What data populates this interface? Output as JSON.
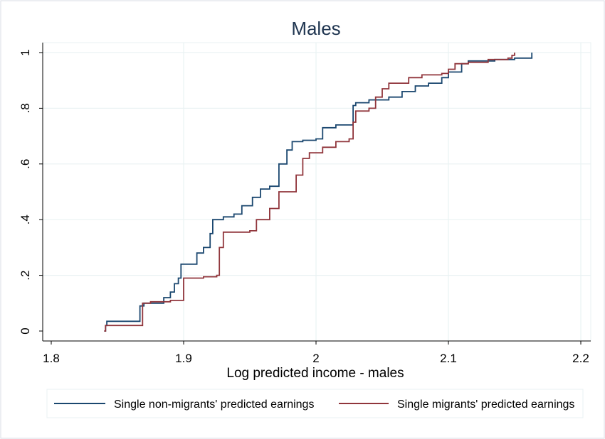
{
  "chart_data": {
    "type": "line",
    "title": "Males",
    "xlabel": "Log predicted income - males",
    "ylabel": "",
    "xlim": [
      1.8,
      2.2
    ],
    "ylim": [
      0,
      1
    ],
    "xticks": [
      "1.8",
      "1.9",
      "2",
      "2.1",
      "2.2"
    ],
    "yticks": [
      "0",
      ".2",
      ".4",
      ".6",
      ".8",
      "1"
    ],
    "grid": true,
    "legend_position": "bottom",
    "series": [
      {
        "name": "Single non-migrants' predicted earnings",
        "color": "#1a476f",
        "step": true,
        "points": [
          [
            1.84,
            0.0
          ],
          [
            1.841,
            0.02
          ],
          [
            1.842,
            0.035
          ],
          [
            1.867,
            0.09
          ],
          [
            1.87,
            0.1
          ],
          [
            1.885,
            0.12
          ],
          [
            1.89,
            0.14
          ],
          [
            1.893,
            0.17
          ],
          [
            1.896,
            0.19
          ],
          [
            1.898,
            0.24
          ],
          [
            1.905,
            0.24
          ],
          [
            1.91,
            0.28
          ],
          [
            1.915,
            0.3
          ],
          [
            1.92,
            0.35
          ],
          [
            1.922,
            0.4
          ],
          [
            1.93,
            0.41
          ],
          [
            1.938,
            0.42
          ],
          [
            1.944,
            0.45
          ],
          [
            1.952,
            0.48
          ],
          [
            1.958,
            0.51
          ],
          [
            1.965,
            0.52
          ],
          [
            1.972,
            0.6
          ],
          [
            1.978,
            0.65
          ],
          [
            1.982,
            0.68
          ],
          [
            1.99,
            0.685
          ],
          [
            2.0,
            0.69
          ],
          [
            2.005,
            0.73
          ],
          [
            2.015,
            0.74
          ],
          [
            2.025,
            0.74
          ],
          [
            2.028,
            0.81
          ],
          [
            2.03,
            0.82
          ],
          [
            2.04,
            0.83
          ],
          [
            2.055,
            0.84
          ],
          [
            2.065,
            0.86
          ],
          [
            2.075,
            0.88
          ],
          [
            2.085,
            0.89
          ],
          [
            2.095,
            0.91
          ],
          [
            2.1,
            0.93
          ],
          [
            2.11,
            0.96
          ],
          [
            2.115,
            0.97
          ],
          [
            2.135,
            0.975
          ],
          [
            2.15,
            0.98
          ],
          [
            2.16,
            0.98
          ],
          [
            2.163,
            1.0
          ]
        ]
      },
      {
        "name": "Single migrants' predicted earnings",
        "color": "#90353b",
        "step": true,
        "points": [
          [
            1.84,
            0.0
          ],
          [
            1.841,
            0.02
          ],
          [
            1.867,
            0.02
          ],
          [
            1.869,
            0.1
          ],
          [
            1.875,
            0.105
          ],
          [
            1.89,
            0.11
          ],
          [
            1.9,
            0.19
          ],
          [
            1.915,
            0.195
          ],
          [
            1.925,
            0.2
          ],
          [
            1.927,
            0.3
          ],
          [
            1.93,
            0.355
          ],
          [
            1.95,
            0.36
          ],
          [
            1.955,
            0.4
          ],
          [
            1.965,
            0.44
          ],
          [
            1.972,
            0.5
          ],
          [
            1.982,
            0.5
          ],
          [
            1.985,
            0.56
          ],
          [
            1.99,
            0.62
          ],
          [
            1.995,
            0.64
          ],
          [
            2.005,
            0.66
          ],
          [
            2.015,
            0.68
          ],
          [
            2.025,
            0.69
          ],
          [
            2.028,
            0.75
          ],
          [
            2.03,
            0.79
          ],
          [
            2.04,
            0.8
          ],
          [
            2.045,
            0.84
          ],
          [
            2.05,
            0.87
          ],
          [
            2.055,
            0.89
          ],
          [
            2.07,
            0.91
          ],
          [
            2.08,
            0.92
          ],
          [
            2.095,
            0.925
          ],
          [
            2.1,
            0.94
          ],
          [
            2.105,
            0.96
          ],
          [
            2.115,
            0.965
          ],
          [
            2.13,
            0.975
          ],
          [
            2.145,
            0.98
          ],
          [
            2.148,
            0.99
          ],
          [
            2.15,
            1.0
          ]
        ]
      }
    ]
  }
}
